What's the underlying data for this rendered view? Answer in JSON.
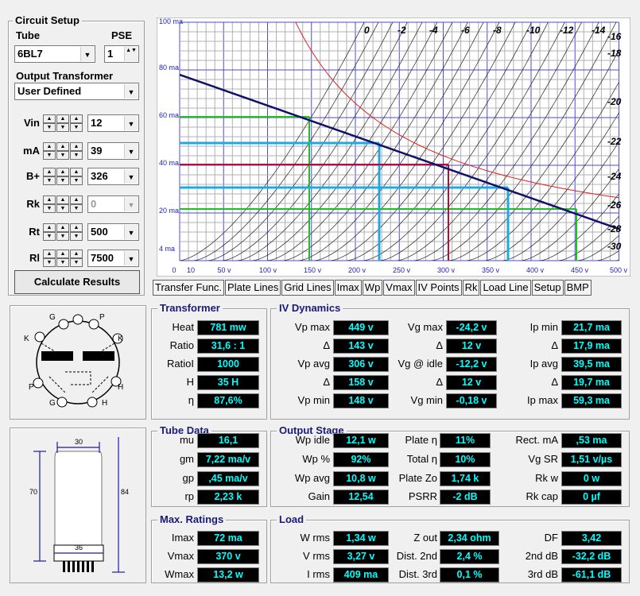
{
  "setup": {
    "title": "Circuit Setup",
    "tube_label": "Tube",
    "tube": "6BL7",
    "pse_label": "PSE",
    "pse": "1",
    "transformer_label": "Output Transformer",
    "transformer": "User Defined",
    "rows": [
      [
        "Vin",
        "12"
      ],
      [
        "mA",
        "39"
      ],
      [
        "B+",
        "326"
      ],
      [
        "Rk",
        "0"
      ],
      [
        "Rt",
        "500"
      ],
      [
        "Rl",
        "7500"
      ]
    ],
    "calculate": "Calculate Results"
  },
  "plot": {
    "y_labels": [
      "100 ma",
      "80 ma",
      "60 ma",
      "40 ma",
      "20 ma",
      "4 ma"
    ],
    "x_labels": [
      "0",
      "10",
      "50 v",
      "100 v",
      "150 v",
      "200 v",
      "250 v",
      "300 v",
      "350 v",
      "400 v",
      "450 v",
      "500 v"
    ],
    "curve_labels": [
      "0",
      "-2",
      "-4",
      "-6",
      "-8",
      "-10",
      "-12",
      "-14",
      "-16",
      "-18",
      "-20",
      "-22",
      "-24",
      "-26",
      "-28",
      "-30"
    ]
  },
  "tabs": [
    "Transfer Func.",
    "Plate Lines",
    "Grid Lines",
    "Imax",
    "Wp",
    "Vmax",
    "IV Points",
    "Rk",
    "Load Line",
    "Setup",
    "BMP"
  ],
  "pinout": {
    "pins": [
      "G",
      "P",
      "K",
      "K",
      "P",
      "H",
      "G",
      "H"
    ]
  },
  "outline": {
    "dims": [
      "30",
      "70",
      "84",
      "36"
    ]
  },
  "transformer": {
    "title": "Transformer",
    "rows": [
      [
        "Heat",
        "781 mw"
      ],
      [
        "Ratio",
        "31,6 : 1"
      ],
      [
        "RatioI",
        "1000"
      ],
      [
        "H",
        "35 H"
      ],
      [
        "η",
        "87,6%"
      ]
    ]
  },
  "iv_dynamics": {
    "title": "IV Dynamics",
    "rows": [
      [
        "Vp max",
        "449 v",
        "Vg max",
        "-24,2 v",
        "Ip min",
        "21,7 ma"
      ],
      [
        "Δ",
        "143 v",
        "Δ",
        "12 v",
        "Δ",
        "17,9 ma"
      ],
      [
        "Vp avg",
        "306 v",
        "Vg @ idle",
        "-12,2 v",
        "Ip avg",
        "39,5 ma"
      ],
      [
        "Δ",
        "158 v",
        "Δ",
        "12 v",
        "Δ",
        "19,7 ma"
      ],
      [
        "Vp min",
        "148 v",
        "Vg min",
        "-0,18 v",
        "Ip max",
        "59,3 ma"
      ]
    ]
  },
  "tube_data": {
    "title": "Tube Data",
    "rows": [
      [
        "mu",
        "16,1"
      ],
      [
        "gm",
        "7,22 ma/v"
      ],
      [
        "gp",
        ",45 ma/v"
      ],
      [
        "rp",
        "2,23 k"
      ]
    ]
  },
  "output_stage": {
    "title": "Output Stage",
    "rows": [
      [
        "Wp idle",
        "12,1 w",
        "Plate η",
        "11%",
        "Rect. mA",
        ",53 ma"
      ],
      [
        "Wp %",
        "92%",
        "Total η",
        "10%",
        "Vg SR",
        "1,51 v/µs"
      ],
      [
        "Wp avg",
        "10,8 w",
        "Plate Zo",
        "1,74 k",
        "Rk w",
        "0 w"
      ],
      [
        "Gain",
        "12,54",
        "PSRR",
        "-2 dB",
        "Rk cap",
        "0 µf"
      ]
    ]
  },
  "max_ratings": {
    "title": "Max. Ratings",
    "rows": [
      [
        "Imax",
        "72 ma"
      ],
      [
        "Vmax",
        "370 v"
      ],
      [
        "Wmax",
        "13,2 w"
      ]
    ]
  },
  "load": {
    "title": "Load",
    "rows": [
      [
        "W rms",
        "1,34 w",
        "Z out",
        "2,34 ohm",
        "DF",
        "3,42"
      ],
      [
        "V rms",
        "3,27 v",
        "Dist. 2nd",
        "2,4 %",
        "2nd dB",
        "-32,2 dB"
      ],
      [
        "I rms",
        "409 ma",
        "Dist. 3rd",
        "0,1 %",
        "3rd dB",
        "-61,1 dB"
      ]
    ]
  }
}
